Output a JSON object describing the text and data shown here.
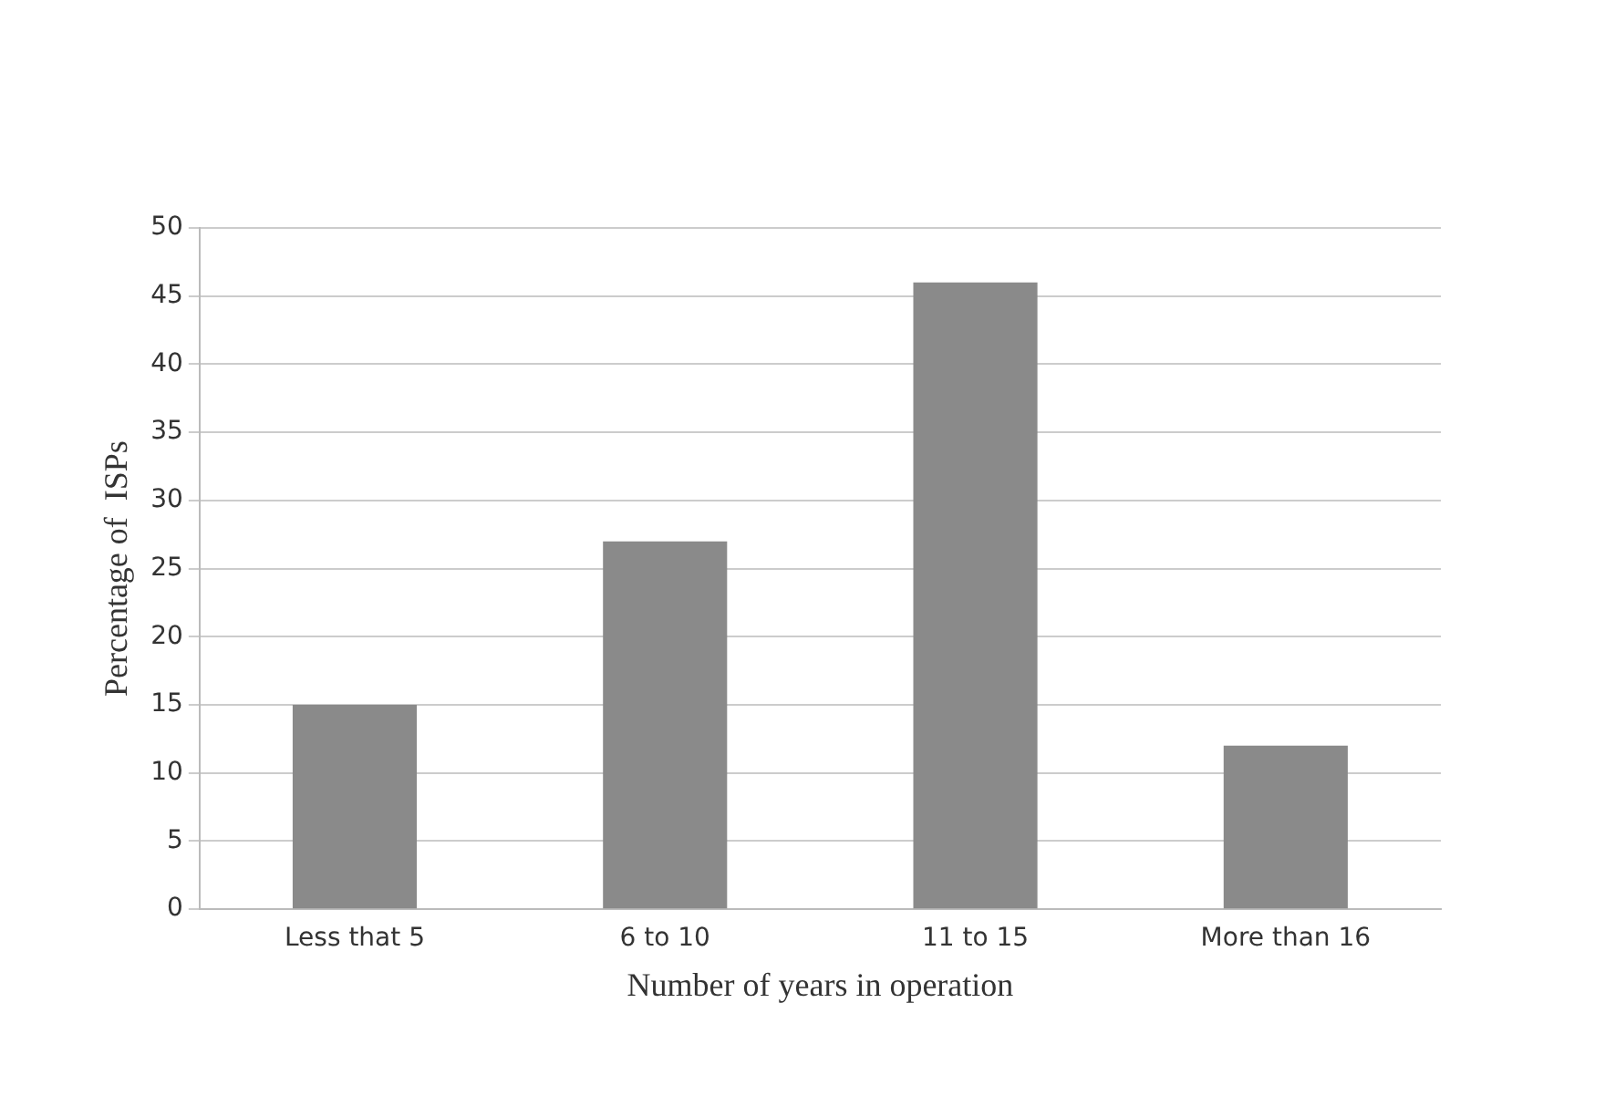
{
  "chart_data": {
    "type": "bar",
    "xlabel": "Number of years in operation",
    "ylabel": "Percentage of  ISPs",
    "categories": [
      "Less that 5",
      "6 to 10",
      "11 to 15",
      "More than 16"
    ],
    "values": [
      15,
      27,
      46,
      12
    ],
    "color": "#8a8a8a",
    "ylim": [
      0,
      50
    ],
    "yticks": [
      0,
      5,
      10,
      15,
      20,
      25,
      30,
      35,
      40,
      45,
      50
    ],
    "grid": "y",
    "legend": false
  }
}
